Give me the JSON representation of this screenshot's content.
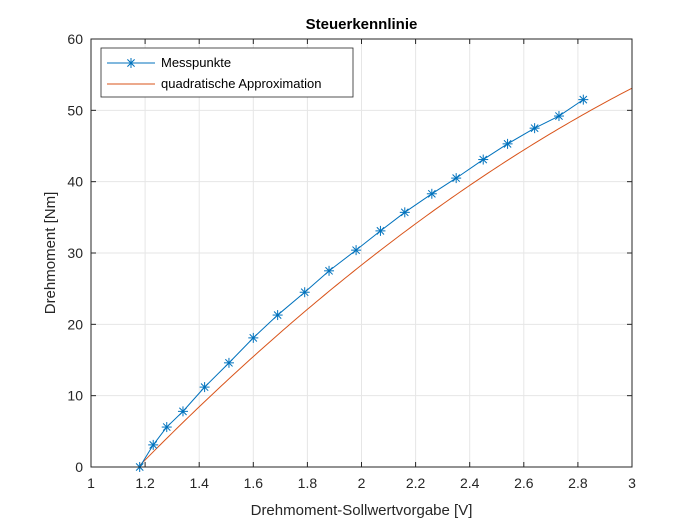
{
  "chart_data": {
    "type": "line",
    "title": "Steuerkennlinie",
    "xlabel": "Drehmoment-Sollwertvorgabe [V]",
    "ylabel": "Drehmoment [Nm]",
    "xlim": [
      1,
      3
    ],
    "ylim": [
      0,
      60
    ],
    "xticks": [
      1,
      1.2,
      1.4,
      1.6,
      1.8,
      2,
      2.2,
      2.4,
      2.6,
      2.8,
      3
    ],
    "xtick_labels": [
      "1",
      "1.2",
      "1.4",
      "1.6",
      "1.8",
      "2",
      "2.2",
      "2.4",
      "2.6",
      "2.8",
      "3"
    ],
    "yticks": [
      0,
      10,
      20,
      30,
      40,
      50,
      60
    ],
    "ytick_labels": [
      "0",
      "10",
      "20",
      "30",
      "40",
      "50",
      "60"
    ],
    "grid": true,
    "legend_position": "top-left",
    "series": [
      {
        "name": "Messpunkte",
        "style": "line-with-star-markers",
        "color": "#0072BD",
        "x": [
          1.18,
          1.23,
          1.28,
          1.34,
          1.42,
          1.51,
          1.6,
          1.69,
          1.79,
          1.88,
          1.98,
          2.07,
          2.16,
          2.26,
          2.35,
          2.45,
          2.54,
          2.64,
          2.73,
          2.82
        ],
        "y": [
          0.0,
          3.1,
          5.6,
          7.8,
          11.2,
          14.6,
          18.1,
          21.3,
          24.5,
          27.5,
          30.4,
          33.1,
          35.7,
          38.3,
          40.5,
          43.1,
          45.3,
          47.5,
          49.2,
          51.5
        ]
      },
      {
        "name": "quadratische Approximation",
        "style": "line",
        "color": "#D95319",
        "coefficients": {
          "a": -5.2,
          "b": 50.8,
          "c": -52.49
        },
        "x_range": [
          1.18,
          3.0
        ]
      }
    ]
  }
}
